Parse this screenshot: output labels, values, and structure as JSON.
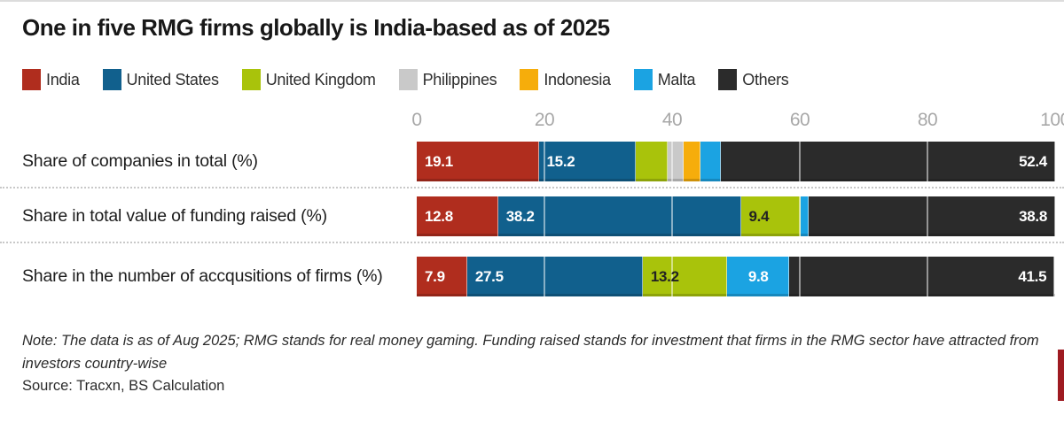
{
  "title": "One in five RMG firms globally is India-based as of 2025",
  "note": "Note: The data is as of Aug 2025; RMG stands for real money gaming. Funding raised stands for investment that firms in the RMG sector have attracted from investors country-wise",
  "source": "Source: Tracxn, BS Calculation",
  "colors": {
    "India": "#b02d1e",
    "United States": "#11608d",
    "United Kingdom": "#a9c30b",
    "Philippines": "#c9c9c9",
    "Indonesia": "#f6ad0b",
    "Malta": "#1ba3e2",
    "Others": "#2b2b2b",
    "accent_red": "#9e1a21",
    "grid_line": "rgba(255,255,255,0.5)",
    "tick_text": "#a8a8a8"
  },
  "chart_data": {
    "type": "bar",
    "subtype": "horizontal_stacked",
    "unit": "%",
    "xlim": [
      0,
      100
    ],
    "x_ticks": [
      0,
      20,
      40,
      60,
      80,
      100
    ],
    "grid": true,
    "legend_position": "top",
    "legend": [
      "India",
      "United States",
      "United Kingdom",
      "Philippines",
      "Indonesia",
      "Malta",
      "Others"
    ],
    "categories": [
      "Share of companies in total (%)",
      "Share in total value of funding raised (%)",
      "Share in the number of accqusitions of firms (%)"
    ],
    "rows": [
      {
        "label": "Share of companies in total (%)",
        "segments": [
          {
            "name": "India",
            "value": 19.1,
            "label": "19.1",
            "label_style": "light",
            "label_align": "left"
          },
          {
            "name": "United States",
            "value": 15.2,
            "label": "15.2",
            "label_style": "light",
            "label_align": "left"
          },
          {
            "name": "United Kingdom",
            "value": 5.0,
            "estimated": true
          },
          {
            "name": "Philippines",
            "value": 2.5,
            "estimated": true
          },
          {
            "name": "Indonesia",
            "value": 2.7,
            "estimated": true
          },
          {
            "name": "Malta",
            "value": 3.1,
            "estimated": true
          },
          {
            "name": "Others",
            "value": 52.4,
            "label": "52.4",
            "label_style": "light",
            "label_align": "right"
          }
        ]
      },
      {
        "label": "Share in total value of funding raised (%)",
        "segments": [
          {
            "name": "India",
            "value": 12.8,
            "label": "12.8",
            "label_style": "light",
            "label_align": "left"
          },
          {
            "name": "United States",
            "value": 38.2,
            "label": "38.2",
            "label_style": "light",
            "label_align": "left"
          },
          {
            "name": "United Kingdom",
            "value": 9.4,
            "label": "9.4",
            "label_style": "dark",
            "label_align": "left"
          },
          {
            "name": "Malta",
            "value": 0.8,
            "estimated": true
          },
          {
            "name": "Others",
            "value": 38.8,
            "label": "38.8",
            "label_style": "light",
            "label_align": "right"
          }
        ]
      },
      {
        "label": "Share in the number of accqusitions of firms (%)",
        "segments": [
          {
            "name": "India",
            "value": 7.9,
            "label": "7.9",
            "label_style": "light",
            "label_align": "left"
          },
          {
            "name": "United States",
            "value": 27.5,
            "label": "27.5",
            "label_style": "light",
            "label_align": "left"
          },
          {
            "name": "United Kingdom",
            "value": 13.2,
            "label": "13.2",
            "label_style": "dark",
            "label_align": "left"
          },
          {
            "name": "Malta",
            "value": 9.8,
            "label": "9.8",
            "label_style": "light",
            "label_align": "center"
          },
          {
            "name": "Others",
            "value": 41.5,
            "label": "41.5",
            "label_style": "light",
            "label_align": "right"
          }
        ]
      }
    ],
    "layout": {
      "bar_tops": [
        158,
        220,
        288
      ],
      "separator_tops": [
        209,
        271
      ],
      "gridline_ticks": [
        20,
        40,
        60,
        80
      ]
    }
  }
}
